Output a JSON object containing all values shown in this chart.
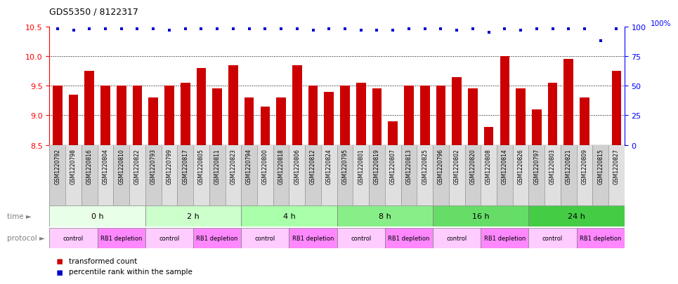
{
  "title": "GDS5350 / 8122317",
  "samples": [
    "GSM1220792",
    "GSM1220798",
    "GSM1220816",
    "GSM1220804",
    "GSM1220810",
    "GSM1220822",
    "GSM1220793",
    "GSM1220799",
    "GSM1220817",
    "GSM1220805",
    "GSM1220811",
    "GSM1220823",
    "GSM1220794",
    "GSM1220800",
    "GSM1220818",
    "GSM1220806",
    "GSM1220812",
    "GSM1220824",
    "GSM1220795",
    "GSM1220801",
    "GSM1220819",
    "GSM1220807",
    "GSM1220813",
    "GSM1220825",
    "GSM1220796",
    "GSM1220802",
    "GSM1220820",
    "GSM1220808",
    "GSM1220814",
    "GSM1220826",
    "GSM1220797",
    "GSM1220803",
    "GSM1220821",
    "GSM1220809",
    "GSM1220815",
    "GSM1220827"
  ],
  "bar_values": [
    9.5,
    9.35,
    9.75,
    9.5,
    9.5,
    9.5,
    9.3,
    9.5,
    9.55,
    9.8,
    9.45,
    9.85,
    9.3,
    9.15,
    9.3,
    9.85,
    9.5,
    9.4,
    9.5,
    9.55,
    9.45,
    8.9,
    9.5,
    9.5,
    9.5,
    9.65,
    9.45,
    8.8,
    10.0,
    9.45,
    9.1,
    9.55,
    9.95,
    9.3,
    8.5,
    9.75
  ],
  "percentile_values": [
    98,
    97,
    98,
    98,
    98,
    98,
    98,
    97,
    98,
    98,
    98,
    98,
    98,
    98,
    98,
    98,
    97,
    98,
    98,
    97,
    97,
    97,
    98,
    98,
    98,
    97,
    98,
    95,
    98,
    97,
    98,
    98,
    98,
    98,
    88,
    98
  ],
  "ylim_left": [
    8.5,
    10.5
  ],
  "ylim_right": [
    0,
    100
  ],
  "yticks_left": [
    8.5,
    9.0,
    9.5,
    10.0,
    10.5
  ],
  "yticks_right": [
    0,
    25,
    50,
    75,
    100
  ],
  "bar_color": "#cc0000",
  "dot_color": "#0000cc",
  "time_groups": [
    {
      "label": "0 h",
      "start": 0,
      "end": 6,
      "color": "#e8ffe8"
    },
    {
      "label": "2 h",
      "start": 6,
      "end": 12,
      "color": "#ccffcc"
    },
    {
      "label": "4 h",
      "start": 12,
      "end": 18,
      "color": "#aaffaa"
    },
    {
      "label": "8 h",
      "start": 18,
      "end": 24,
      "color": "#88ee88"
    },
    {
      "label": "16 h",
      "start": 24,
      "end": 30,
      "color": "#66dd66"
    },
    {
      "label": "24 h",
      "start": 30,
      "end": 36,
      "color": "#44cc44"
    }
  ],
  "protocol_groups": [
    {
      "label": "control",
      "start": 0,
      "end": 3,
      "color": "#ffccff"
    },
    {
      "label": "RB1 depletion",
      "start": 3,
      "end": 6,
      "color": "#ff88ff"
    },
    {
      "label": "control",
      "start": 6,
      "end": 9,
      "color": "#ffccff"
    },
    {
      "label": "RB1 depletion",
      "start": 9,
      "end": 12,
      "color": "#ff88ff"
    },
    {
      "label": "control",
      "start": 12,
      "end": 15,
      "color": "#ffccff"
    },
    {
      "label": "RB1 depletion",
      "start": 15,
      "end": 18,
      "color": "#ff88ff"
    },
    {
      "label": "control",
      "start": 18,
      "end": 21,
      "color": "#ffccff"
    },
    {
      "label": "RB1 depletion",
      "start": 21,
      "end": 24,
      "color": "#ff88ff"
    },
    {
      "label": "control",
      "start": 24,
      "end": 27,
      "color": "#ffccff"
    },
    {
      "label": "RB1 depletion",
      "start": 27,
      "end": 30,
      "color": "#ff88ff"
    },
    {
      "label": "control",
      "start": 30,
      "end": 33,
      "color": "#ffccff"
    },
    {
      "label": "RB1 depletion",
      "start": 33,
      "end": 36,
      "color": "#ff88ff"
    }
  ]
}
